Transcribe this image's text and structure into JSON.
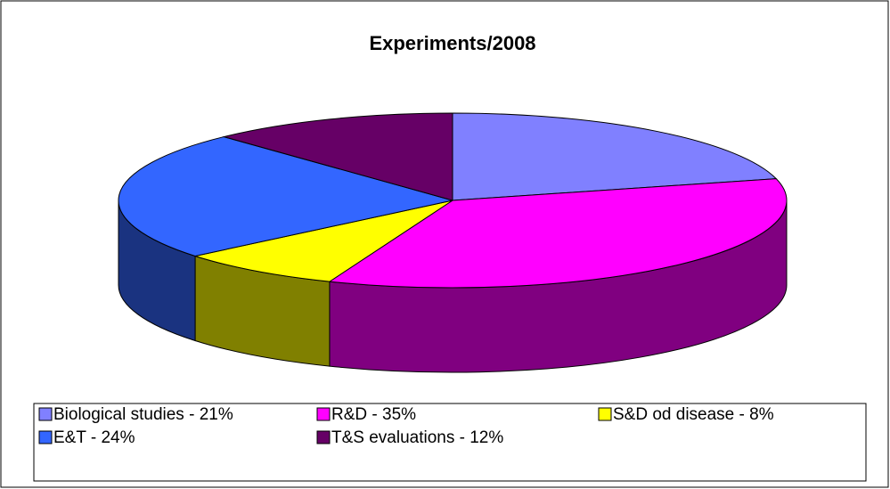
{
  "chart_data": {
    "type": "pie3d",
    "title": "Experiments/2008",
    "categories": [
      "Biological studies - 21%",
      "R&D - 35%",
      "S&D od disease - 8%",
      "E&T - 24%",
      "T&S evaluations - 12%"
    ],
    "values": [
      21,
      35,
      8,
      24,
      12
    ],
    "colors": [
      "#8080ff",
      "#ff00ff",
      "#ffff00",
      "#3366ff",
      "#660066"
    ]
  }
}
